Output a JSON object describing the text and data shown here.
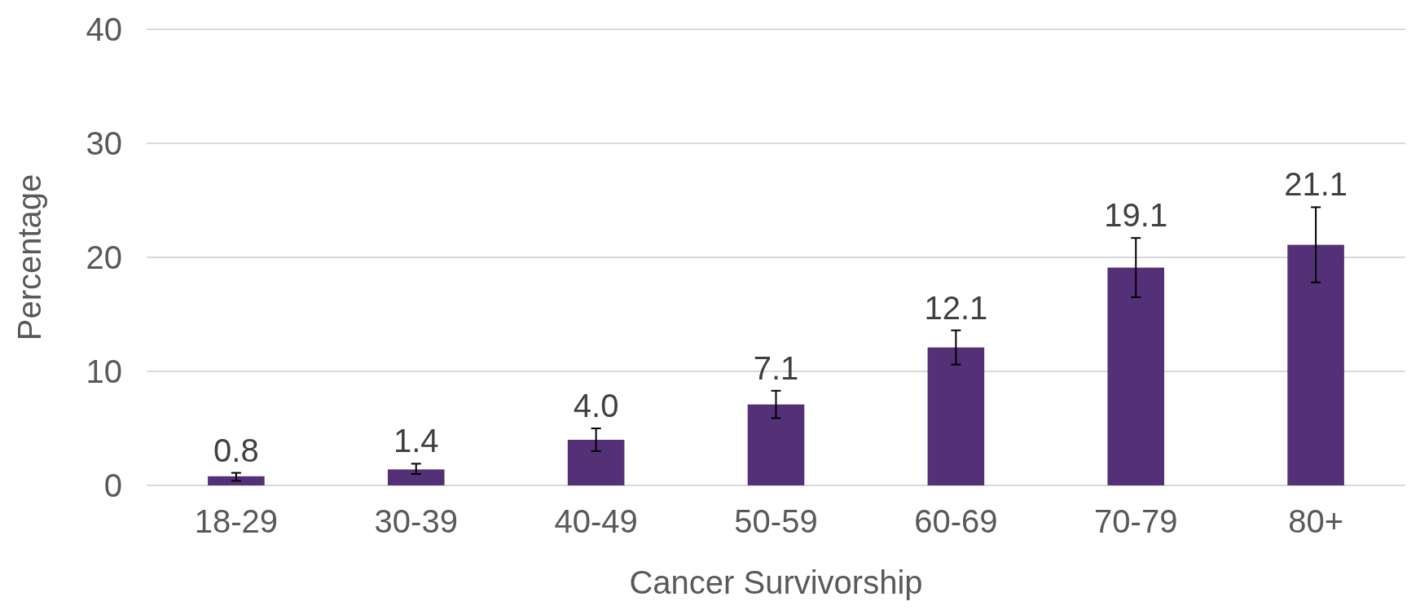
{
  "chart_data": {
    "type": "bar",
    "xlabel": "Cancer Survivorship",
    "ylabel": "Percentage",
    "categories": [
      "18-29",
      "30-39",
      "40-49",
      "50-59",
      "60-69",
      "70-79",
      "80+"
    ],
    "values": [
      0.8,
      1.4,
      4.0,
      7.1,
      12.1,
      19.1,
      21.1
    ],
    "errors": [
      [
        0.4,
        1.1
      ],
      [
        1.0,
        1.9
      ],
      [
        3.0,
        5.0
      ],
      [
        5.9,
        8.3
      ],
      [
        10.6,
        13.6
      ],
      [
        16.5,
        21.7
      ],
      [
        17.8,
        24.4
      ]
    ],
    "value_labels": [
      "0.8",
      "1.4",
      "4.0",
      "7.1",
      "12.1",
      "19.1",
      "21.1"
    ],
    "color": "#543176",
    "ylim": [
      0,
      40
    ],
    "yticks": [
      0,
      10,
      20,
      30,
      40
    ],
    "grid": "y"
  }
}
